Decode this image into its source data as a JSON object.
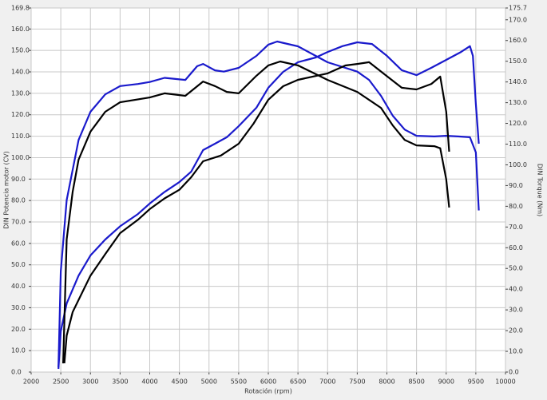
{
  "chart_data": {
    "type": "line",
    "xlabel": "Rotación (rpm)",
    "ylabel": "DIN Potencia motor (CV)",
    "y2label": "DIN Torque (Nm)",
    "xlim": [
      2000,
      10000
    ],
    "xticks": [
      2000,
      2500,
      3000,
      3500,
      4000,
      4500,
      5000,
      5500,
      6000,
      6500,
      7000,
      7500,
      8000,
      8500,
      9000,
      9500,
      10000
    ],
    "ylim": [
      0,
      169.8
    ],
    "yticks": [
      {
        "value": 0,
        "label": "0.0"
      },
      {
        "value": 10,
        "label": "10.0"
      },
      {
        "value": 20,
        "label": "20.0"
      },
      {
        "value": 30,
        "label": "30.0"
      },
      {
        "value": 40,
        "label": "40.0"
      },
      {
        "value": 50,
        "label": "50.0"
      },
      {
        "value": 60,
        "label": "60.0"
      },
      {
        "value": 70,
        "label": "70.0"
      },
      {
        "value": 80,
        "label": "80.0"
      },
      {
        "value": 90,
        "label": "90.0"
      },
      {
        "value": 100,
        "label": "100.0"
      },
      {
        "value": 110,
        "label": "110.0"
      },
      {
        "value": 120,
        "label": "120.0"
      },
      {
        "value": 130,
        "label": "130.0"
      },
      {
        "value": 140,
        "label": "140.0"
      },
      {
        "value": 150,
        "label": "150.0"
      },
      {
        "value": 160,
        "label": "160.0"
      },
      169.8
    ],
    "y2lim": [
      0,
      175.7
    ],
    "y2ticks": [
      {
        "value": 0,
        "label": "0.0"
      },
      {
        "value": 10,
        "label": "10.0"
      },
      {
        "value": 20,
        "label": "20.0"
      },
      {
        "value": 30,
        "label": "30.0"
      },
      {
        "value": 40,
        "label": "40.0"
      },
      {
        "value": 50,
        "label": "50.0"
      },
      {
        "value": 60,
        "label": "60.0"
      },
      {
        "value": 70,
        "label": "70.0"
      },
      {
        "value": 80,
        "label": "80.0"
      },
      {
        "value": 90,
        "label": "90.0"
      },
      {
        "value": 100,
        "label": "100.0"
      },
      {
        "value": 110,
        "label": "110.0"
      },
      {
        "value": 120,
        "label": "120.0"
      },
      {
        "value": 130,
        "label": "130.0"
      },
      {
        "value": 140,
        "label": "140.0"
      },
      {
        "value": 150,
        "label": "150.0"
      },
      {
        "value": 160,
        "label": "160.0"
      },
      {
        "value": 170,
        "label": "170.0"
      },
      175.7
    ],
    "grid": true,
    "series": [
      {
        "color": "#1a1acc",
        "axis": "y",
        "x": [
          2460,
          2500,
          2600,
          2800,
          3000,
          3250,
          3500,
          3800,
          4000,
          4250,
          4500,
          4700,
          4900,
          5100,
          5300,
          5500,
          5800,
          6000,
          6250,
          6500,
          6800,
          7000,
          7250,
          7500,
          7750,
          8000,
          8250,
          8500,
          8750,
          9000,
          9250,
          9400,
          9450,
          9500,
          9550
        ],
        "values": [
          1.5,
          19,
          32,
          45,
          54.4,
          61.8,
          68,
          73.7,
          78.6,
          84,
          88.6,
          93.5,
          103.5,
          106.5,
          109.5,
          114.7,
          123.3,
          132.6,
          140,
          144.5,
          146.7,
          149.3,
          152,
          153.8,
          153,
          147.5,
          140.8,
          138.5,
          141.9,
          145.6,
          149.3,
          152,
          147.5,
          125,
          106.5
        ]
      },
      {
        "color": "#1a1acc",
        "axis": "y2",
        "x": [
          2460,
          2500,
          2600,
          2800,
          3000,
          3250,
          3500,
          3800,
          4000,
          4250,
          4600,
          4800,
          4900,
          5100,
          5250,
          5500,
          5800,
          6000,
          6150,
          6500,
          7000,
          7500,
          7700,
          7900,
          8100,
          8300,
          8500,
          8800,
          9000,
          9200,
          9400,
          9500,
          9550
        ],
        "values": [
          2.3,
          48.5,
          83,
          112,
          125.6,
          134,
          138,
          139,
          140,
          142,
          141,
          147.6,
          148.7,
          145.6,
          145,
          146.8,
          152.6,
          158,
          159.5,
          157.2,
          149.5,
          145,
          141,
          133.3,
          123.7,
          117,
          114,
          113.7,
          114,
          113.7,
          113.3,
          106,
          78
        ]
      },
      {
        "color": "#000000",
        "axis": "y",
        "x": [
          2560,
          2600,
          2700,
          3000,
          3250,
          3500,
          3800,
          4000,
          4250,
          4500,
          4700,
          4900,
          5200,
          5500,
          5750,
          6000,
          6250,
          6500,
          7000,
          7300,
          7500,
          7700,
          8000,
          8250,
          8500,
          8750,
          8900,
          9000,
          9050
        ],
        "values": [
          4.1,
          17,
          28,
          45,
          55,
          64.8,
          71,
          76,
          81,
          85,
          90.9,
          98.3,
          101,
          106.5,
          115.8,
          127,
          133.3,
          136.3,
          139.3,
          143,
          143.7,
          144.5,
          138,
          132.6,
          131.8,
          134.4,
          137.8,
          121.4,
          102.8
        ]
      },
      {
        "color": "#000000",
        "axis": "y2",
        "x": [
          2540,
          2600,
          2700,
          2800,
          3000,
          3250,
          3500,
          4000,
          4250,
          4600,
          4900,
          5100,
          5300,
          5500,
          5800,
          6000,
          6200,
          6500,
          7000,
          7500,
          7900,
          8100,
          8300,
          8500,
          8800,
          8900,
          9000,
          9050
        ],
        "values": [
          4.2,
          64,
          87,
          102.5,
          116,
          125.6,
          130.2,
          132.5,
          134.5,
          133.3,
          140.2,
          138,
          135.2,
          134.5,
          143,
          148,
          149.9,
          148,
          141,
          135.2,
          127.5,
          119,
          112,
          109.4,
          109,
          108,
          93,
          79.4
        ]
      }
    ]
  }
}
